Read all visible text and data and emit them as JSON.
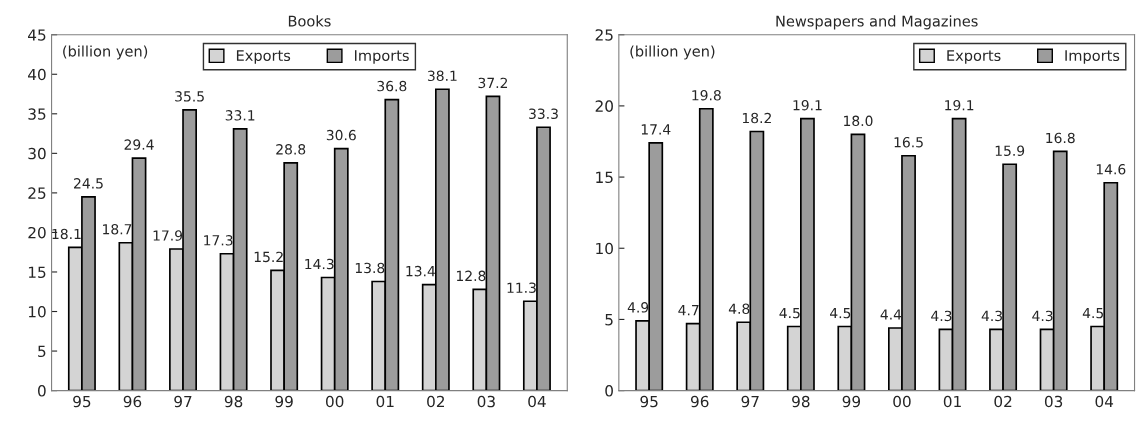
{
  "chart_data": [
    {
      "type": "bar",
      "title": "Books",
      "annotations": [
        "(billion yen)"
      ],
      "categories": [
        "95",
        "96",
        "97",
        "98",
        "99",
        "00",
        "01",
        "02",
        "03",
        "04"
      ],
      "ylim": [
        0,
        45
      ],
      "yticks": [
        0,
        5,
        10,
        15,
        20,
        25,
        30,
        35,
        40,
        45
      ],
      "legend": "top",
      "data_labels": true,
      "grid": false,
      "series": [
        {
          "name": "Exports",
          "color": "#d4d4d4",
          "values": [
            18.1,
            18.7,
            17.9,
            17.3,
            15.2,
            14.3,
            13.8,
            13.4,
            12.8,
            11.3
          ]
        },
        {
          "name": "Imports",
          "color": "#9c9c9c",
          "values": [
            24.5,
            29.4,
            35.5,
            33.1,
            28.8,
            30.6,
            36.8,
            38.1,
            37.2,
            33.3
          ]
        }
      ]
    },
    {
      "type": "bar",
      "title": "Newspapers and Magazines",
      "annotations": [
        "(billion yen)"
      ],
      "categories": [
        "95",
        "96",
        "97",
        "98",
        "99",
        "00",
        "01",
        "02",
        "03",
        "04"
      ],
      "ylim": [
        0,
        25
      ],
      "yticks": [
        0,
        5,
        10,
        15,
        20,
        25
      ],
      "legend": "top right",
      "grid": false,
      "series": [
        {
          "name": "Exports",
          "color": "#d4d4d4",
          "values": [
            4.9,
            4.7,
            4.8,
            4.5,
            4.5,
            4.4,
            4.3,
            4.3,
            4.3,
            4.5
          ],
          "value_labels": [
            "4.9",
            "4.7",
            "4.8",
            "4.5",
            "4.5",
            "4.4",
            "4.3",
            "4.3",
            "4.3",
            "4.5"
          ]
        },
        {
          "name": "Imports",
          "color": "#9c9c9c",
          "values": [
            17.4,
            19.8,
            18.2,
            19.1,
            18.0,
            16.5,
            19.1,
            15.9,
            16.8,
            14.6
          ],
          "value_labels": [
            "17.4",
            "19.8",
            "18.2",
            "19.1",
            "18.0",
            "16.5",
            "19.1",
            "15.9",
            "16.8",
            "14.6"
          ]
        }
      ]
    }
  ]
}
